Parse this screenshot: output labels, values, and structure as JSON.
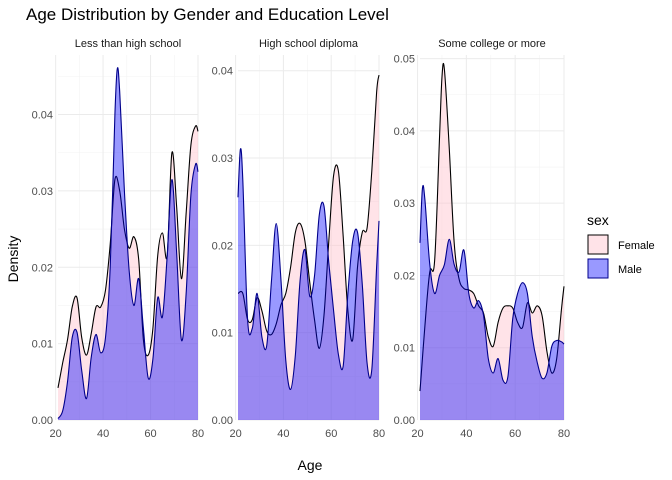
{
  "chart_data": {
    "type": "area",
    "subtype": "density",
    "title": "Age Distribution by Gender and Education Level",
    "xlabel": "Age",
    "ylabel": "Density",
    "grid": true,
    "legend": {
      "title": "sex",
      "placement": "right",
      "entries": [
        {
          "name": "Female",
          "fill": "#ffc0cb",
          "opacity": 0.45,
          "stroke": "#000000"
        },
        {
          "name": "Male",
          "fill": "#0000ff",
          "opacity": 0.4,
          "stroke": "#00008b"
        }
      ]
    },
    "facets": [
      {
        "label": "Less than high school",
        "xlim": [
          21,
          80
        ],
        "ylim": [
          0,
          0.0478
        ],
        "xticks": [
          20,
          40,
          60,
          80
        ],
        "yticks": [
          0.0,
          0.01,
          0.02,
          0.03,
          0.04
        ],
        "ytick_labels": [
          "0.00",
          "0.01",
          "0.02",
          "0.03",
          "0.04"
        ],
        "series": [
          {
            "name": "Female",
            "x": [
              21,
              23,
              25,
              27,
              29,
              31,
              33,
              35,
              37,
              39,
              41,
              43,
              45,
              47,
              49,
              51,
              53,
              55,
              57,
              59,
              61,
              63,
              65,
              67,
              69,
              71,
              73,
              75,
              77,
              79,
              80
            ],
            "y": [
              0.0042,
              0.0075,
              0.0105,
              0.0148,
              0.016,
              0.0108,
              0.0085,
              0.0113,
              0.0148,
              0.0148,
              0.017,
              0.023,
              0.0315,
              0.03,
              0.025,
              0.0225,
              0.024,
              0.021,
              0.0105,
              0.0085,
              0.012,
              0.0215,
              0.0245,
              0.0215,
              0.035,
              0.028,
              0.0185,
              0.027,
              0.036,
              0.0385,
              0.0378
            ]
          },
          {
            "name": "Male",
            "x": [
              21,
              23,
              25,
              27,
              29,
              31,
              33,
              35,
              37,
              39,
              41,
              43,
              45,
              46,
              47,
              49,
              51,
              53,
              55,
              57,
              59,
              61,
              63,
              65,
              67,
              69,
              71,
              73,
              75,
              77,
              79,
              80
            ],
            "y": [
              0.0002,
              0.0012,
              0.005,
              0.0108,
              0.0115,
              0.0065,
              0.0028,
              0.0082,
              0.0112,
              0.0088,
              0.0108,
              0.02,
              0.04,
              0.046,
              0.043,
              0.03,
              0.0195,
              0.015,
              0.0185,
              0.012,
              0.0055,
              0.008,
              0.016,
              0.0135,
              0.0215,
              0.0315,
              0.022,
              0.0105,
              0.0165,
              0.0295,
              0.0335,
              0.0325
            ]
          }
        ]
      },
      {
        "label": "High school diploma",
        "xlim": [
          21,
          80
        ],
        "ylim": [
          0,
          0.0418
        ],
        "xticks": [
          20,
          40,
          60,
          80
        ],
        "yticks": [
          0.0,
          0.01,
          0.02,
          0.03,
          0.04
        ],
        "ytick_labels": [
          "0.00",
          "0.01",
          "0.02",
          "0.03",
          "0.04"
        ],
        "series": [
          {
            "name": "Female",
            "x": [
              21,
              23,
              25,
              27,
              29,
              31,
              33,
              35,
              37,
              39,
              41,
              43,
              45,
              47,
              49,
              51,
              53,
              55,
              57,
              59,
              61,
              63,
              65,
              67,
              69,
              71,
              73,
              75,
              77,
              79,
              80
            ],
            "y": [
              0.0145,
              0.0145,
              0.0115,
              0.0115,
              0.014,
              0.0125,
              0.0102,
              0.0098,
              0.011,
              0.0132,
              0.0145,
              0.0175,
              0.0215,
              0.0225,
              0.0205,
              0.0158,
              0.0115,
              0.0082,
              0.012,
              0.0205,
              0.028,
              0.0285,
              0.021,
              0.0125,
              0.0092,
              0.0175,
              0.0215,
              0.022,
              0.0285,
              0.0375,
              0.0395
            ]
          },
          {
            "name": "Male",
            "x": [
              21,
              22,
              23,
              25,
              27,
              29,
              31,
              33,
              35,
              37,
              39,
              41,
              43,
              45,
              47,
              49,
              51,
              53,
              55,
              57,
              59,
              61,
              63,
              65,
              67,
              69,
              71,
              73,
              75,
              77,
              79,
              80
            ],
            "y": [
              0.0255,
              0.031,
              0.0275,
              0.0115,
              0.0105,
              0.0145,
              0.0095,
              0.0085,
              0.016,
              0.0225,
              0.016,
              0.0068,
              0.0035,
              0.0075,
              0.016,
              0.0195,
              0.0142,
              0.0165,
              0.0235,
              0.0245,
              0.018,
              0.0125,
              0.0075,
              0.0062,
              0.0145,
              0.0205,
              0.0215,
              0.0155,
              0.0065,
              0.0058,
              0.0175,
              0.0228
            ]
          }
        ]
      },
      {
        "label": "Some college or more",
        "xlim": [
          21,
          80
        ],
        "ylim": [
          0,
          0.0505
        ],
        "xticks": [
          20,
          40,
          60,
          80
        ],
        "yticks": [
          0.0,
          0.01,
          0.02,
          0.03,
          0.04,
          0.05
        ],
        "ytick_labels": [
          "0.00",
          "0.01",
          "0.02",
          "0.03",
          "0.04",
          "0.05"
        ],
        "series": [
          {
            "name": "Female",
            "x": [
              21,
              23,
              25,
              27,
              29,
              30,
              31,
              33,
              35,
              37,
              39,
              41,
              43,
              45,
              47,
              49,
              51,
              53,
              55,
              57,
              59,
              61,
              63,
              65,
              67,
              69,
              71,
              73,
              75,
              77,
              79,
              80
            ],
            "y": [
              0.004,
              0.013,
              0.0205,
              0.022,
              0.039,
              0.0475,
              0.0485,
              0.0375,
              0.0245,
              0.0195,
              0.0182,
              0.018,
              0.0175,
              0.0158,
              0.0148,
              0.0115,
              0.0102,
              0.0135,
              0.0155,
              0.0158,
              0.0155,
              0.0135,
              0.0128,
              0.0162,
              0.0148,
              0.0158,
              0.0145,
              0.0095,
              0.0065,
              0.0085,
              0.0155,
              0.0185
            ]
          },
          {
            "name": "Male",
            "x": [
              21,
              22,
              23,
              25,
              27,
              29,
              31,
              33,
              35,
              37,
              39,
              41,
              43,
              45,
              47,
              49,
              51,
              53,
              55,
              57,
              59,
              61,
              63,
              65,
              67,
              69,
              71,
              73,
              75,
              77,
              79,
              80
            ],
            "y": [
              0.0245,
              0.032,
              0.0305,
              0.0215,
              0.0175,
              0.02,
              0.0215,
              0.025,
              0.0215,
              0.0205,
              0.0235,
              0.0175,
              0.0155,
              0.0165,
              0.0145,
              0.0085,
              0.0065,
              0.0085,
              0.0055,
              0.006,
              0.014,
              0.0175,
              0.019,
              0.0175,
              0.0115,
              0.008,
              0.0058,
              0.0065,
              0.0102,
              0.011,
              0.0108,
              0.0105
            ]
          }
        ]
      }
    ]
  }
}
